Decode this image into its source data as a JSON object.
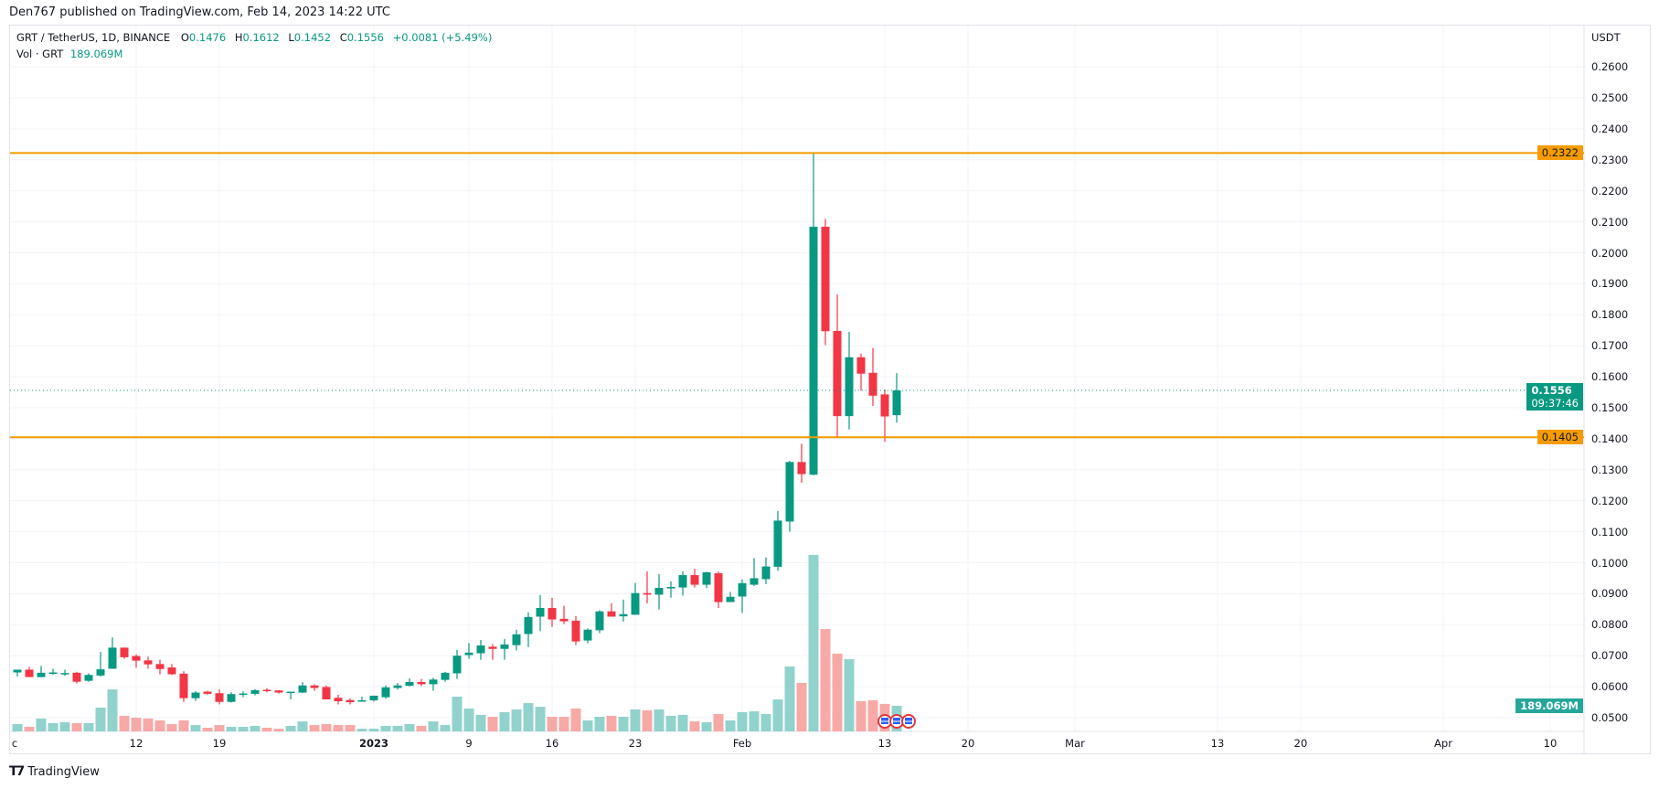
{
  "header": {
    "publish_line": "Den767 published on TradingView.com, Feb 14, 2023 14:22 UTC"
  },
  "legend": {
    "symbol": "GRT / TetherUS, 1D, BINANCE",
    "o_label": "O",
    "o": "0.1476",
    "h_label": "H",
    "h": "0.1612",
    "l_label": "L",
    "l": "0.1452",
    "c_label": "C",
    "c": "0.1556",
    "change": "+0.0081 (+5.49%)",
    "vol_label": "Vol · GRT",
    "vol": "189.069M"
  },
  "price_axis": {
    "currency": "USDT",
    "ticks": [
      "0.0500",
      "0.0600",
      "0.0700",
      "0.0800",
      "0.0900",
      "0.1000",
      "0.1100",
      "0.1200",
      "0.1300",
      "0.1400",
      "0.1500",
      "0.1600",
      "0.1700",
      "0.1800",
      "0.1900",
      "0.2000",
      "0.2100",
      "0.2200",
      "0.2300",
      "0.2400",
      "0.2500",
      "0.2600"
    ],
    "last_price": "0.1556",
    "countdown": "09:37:46",
    "volume_tag": "189.069M"
  },
  "horizontal_lines": [
    {
      "label": "0.2322",
      "value": 0.2322,
      "color": "#f59b00"
    },
    {
      "label": "0.1405",
      "value": 0.1405,
      "color": "#f59b00"
    }
  ],
  "time_axis": {
    "labels": [
      {
        "text": "c",
        "day": -11
      },
      {
        "text": "12",
        "day": 0
      },
      {
        "text": "19",
        "day": 7
      },
      {
        "text": "2023",
        "day": 20
      },
      {
        "text": "9",
        "day": 28
      },
      {
        "text": "16",
        "day": 35
      },
      {
        "text": "23",
        "day": 42
      },
      {
        "text": "Feb",
        "day": 51
      },
      {
        "text": "13",
        "day": 63
      },
      {
        "text": "20",
        "day": 70
      },
      {
        "text": "Mar",
        "day": 79
      },
      {
        "text": "13",
        "day": 91
      },
      {
        "text": "20",
        "day": 98
      },
      {
        "text": "Apr",
        "day": 110
      },
      {
        "text": "10",
        "day": 119
      }
    ]
  },
  "colors": {
    "up": "#089981",
    "down": "#f23645",
    "vol_up": "#92d2cc",
    "vol_down": "#f7a9a7",
    "grid": "#f0f3fa"
  },
  "footer": {
    "brand": "TradingView"
  },
  "chart_data": {
    "type": "candlestick",
    "title": "GRT / TetherUS, 1D, BINANCE",
    "ylabel": "USDT",
    "ylim": [
      0.05,
      0.26
    ],
    "first_day_offset": -11,
    "fields": [
      "open",
      "high",
      "low",
      "close",
      "volume_M"
    ],
    "candles": [
      [
        0.065,
        0.0652,
        0.0646,
        0.0648,
        56
      ],
      [
        0.0646,
        0.0655,
        0.0633,
        0.0655,
        54
      ],
      [
        0.0655,
        0.0664,
        0.0631,
        0.0631,
        34
      ],
      [
        0.0631,
        0.0667,
        0.0631,
        0.0645,
        95
      ],
      [
        0.0644,
        0.0658,
        0.0638,
        0.0646,
        61
      ],
      [
        0.0643,
        0.0655,
        0.0635,
        0.0644,
        68
      ],
      [
        0.0645,
        0.0648,
        0.061,
        0.0616,
        61
      ],
      [
        0.0619,
        0.0643,
        0.0616,
        0.0638,
        61
      ],
      [
        0.0636,
        0.0712,
        0.0633,
        0.0656,
        176
      ],
      [
        0.0658,
        0.0759,
        0.0658,
        0.0726,
        310
      ],
      [
        0.0726,
        0.0726,
        0.069,
        0.0695,
        115
      ],
      [
        0.0699,
        0.0704,
        0.0661,
        0.0684,
        101
      ],
      [
        0.0685,
        0.0697,
        0.0658,
        0.0672,
        95
      ],
      [
        0.0673,
        0.0687,
        0.064,
        0.0657,
        81
      ],
      [
        0.0662,
        0.0673,
        0.0638,
        0.064,
        54
      ],
      [
        0.0642,
        0.065,
        0.0551,
        0.0563,
        81
      ],
      [
        0.0563,
        0.0586,
        0.0554,
        0.0581,
        47
      ],
      [
        0.0584,
        0.0587,
        0.0574,
        0.0577,
        27
      ],
      [
        0.0579,
        0.0592,
        0.0543,
        0.0551,
        47
      ],
      [
        0.0551,
        0.0582,
        0.0549,
        0.0576,
        34
      ],
      [
        0.0576,
        0.0585,
        0.0566,
        0.0578,
        34
      ],
      [
        0.0577,
        0.0592,
        0.0572,
        0.0589,
        41
      ],
      [
        0.059,
        0.0595,
        0.0582,
        0.0586,
        27
      ],
      [
        0.0588,
        0.0589,
        0.0578,
        0.0581,
        20
      ],
      [
        0.0583,
        0.0584,
        0.0559,
        0.0584,
        41
      ],
      [
        0.0581,
        0.0615,
        0.0579,
        0.0604,
        74
      ],
      [
        0.0604,
        0.0608,
        0.0587,
        0.0596,
        47
      ],
      [
        0.0599,
        0.0604,
        0.0559,
        0.0559,
        54
      ],
      [
        0.0564,
        0.0574,
        0.0543,
        0.0553,
        47
      ],
      [
        0.0557,
        0.0562,
        0.0543,
        0.055,
        47
      ],
      [
        0.0555,
        0.0568,
        0.0554,
        0.0556,
        20
      ],
      [
        0.0556,
        0.0571,
        0.0552,
        0.0571,
        20
      ],
      [
        0.0566,
        0.0604,
        0.0561,
        0.0598,
        41
      ],
      [
        0.0596,
        0.0612,
        0.0591,
        0.0604,
        41
      ],
      [
        0.0603,
        0.0627,
        0.0601,
        0.0615,
        54
      ],
      [
        0.0615,
        0.0625,
        0.0602,
        0.0608,
        41
      ],
      [
        0.0608,
        0.0629,
        0.0587,
        0.0623,
        74
      ],
      [
        0.0622,
        0.0648,
        0.0616,
        0.0645,
        47
      ],
      [
        0.0643,
        0.0719,
        0.0625,
        0.07,
        257
      ],
      [
        0.0702,
        0.0741,
        0.069,
        0.071,
        169
      ],
      [
        0.0708,
        0.0751,
        0.0687,
        0.0733,
        122
      ],
      [
        0.0729,
        0.0738,
        0.0687,
        0.0722,
        108
      ],
      [
        0.0722,
        0.0754,
        0.0687,
        0.0736,
        142
      ],
      [
        0.0734,
        0.0784,
        0.0717,
        0.0769,
        162
      ],
      [
        0.077,
        0.084,
        0.0728,
        0.0825,
        209
      ],
      [
        0.0826,
        0.0896,
        0.0779,
        0.0854,
        182
      ],
      [
        0.0854,
        0.0887,
        0.0793,
        0.0817,
        108
      ],
      [
        0.0819,
        0.0861,
        0.0802,
        0.0811,
        108
      ],
      [
        0.0813,
        0.0828,
        0.0734,
        0.0746,
        169
      ],
      [
        0.0749,
        0.0788,
        0.074,
        0.0784,
        81
      ],
      [
        0.0782,
        0.0847,
        0.0773,
        0.0843,
        108
      ],
      [
        0.0843,
        0.0869,
        0.0826,
        0.0826,
        115
      ],
      [
        0.0827,
        0.0881,
        0.081,
        0.0834,
        108
      ],
      [
        0.0832,
        0.0935,
        0.0832,
        0.0902,
        162
      ],
      [
        0.0902,
        0.0972,
        0.0869,
        0.0897,
        155
      ],
      [
        0.0897,
        0.0963,
        0.0849,
        0.0919,
        162
      ],
      [
        0.0917,
        0.094,
        0.0887,
        0.0922,
        115
      ],
      [
        0.092,
        0.0972,
        0.0894,
        0.096,
        122
      ],
      [
        0.096,
        0.0981,
        0.092,
        0.0929,
        74
      ],
      [
        0.0929,
        0.0971,
        0.0918,
        0.0969,
        68
      ],
      [
        0.0966,
        0.0972,
        0.0854,
        0.0873,
        128
      ],
      [
        0.0873,
        0.0906,
        0.0873,
        0.089,
        81
      ],
      [
        0.0891,
        0.0946,
        0.0838,
        0.0934,
        142
      ],
      [
        0.0929,
        0.1015,
        0.0925,
        0.095,
        148
      ],
      [
        0.0947,
        0.1017,
        0.0931,
        0.0988,
        128
      ],
      [
        0.0987,
        0.1167,
        0.0974,
        0.1136,
        236
      ],
      [
        0.1133,
        0.1329,
        0.11,
        0.1325,
        479
      ],
      [
        0.1325,
        0.1384,
        0.1258,
        0.1286,
        358
      ],
      [
        0.1284,
        0.2322,
        0.1282,
        0.2084,
        1303
      ],
      [
        0.2084,
        0.2109,
        0.1702,
        0.1747,
        756
      ],
      [
        0.1748,
        0.1865,
        0.1405,
        0.1473,
        574
      ],
      [
        0.1473,
        0.1745,
        0.143,
        0.1663,
        533
      ],
      [
        0.1663,
        0.1675,
        0.1555,
        0.161,
        223
      ],
      [
        0.1613,
        0.1693,
        0.1506,
        0.1539,
        230
      ],
      [
        0.1543,
        0.1559,
        0.139,
        0.1472,
        203
      ],
      [
        0.1476,
        0.1612,
        0.1452,
        0.1556,
        189.069
      ]
    ],
    "events": [
      {
        "day": 63,
        "type": "us-economic-event"
      },
      {
        "day": 64,
        "type": "us-economic-event"
      },
      {
        "day": 65,
        "type": "us-economic-event"
      }
    ]
  }
}
